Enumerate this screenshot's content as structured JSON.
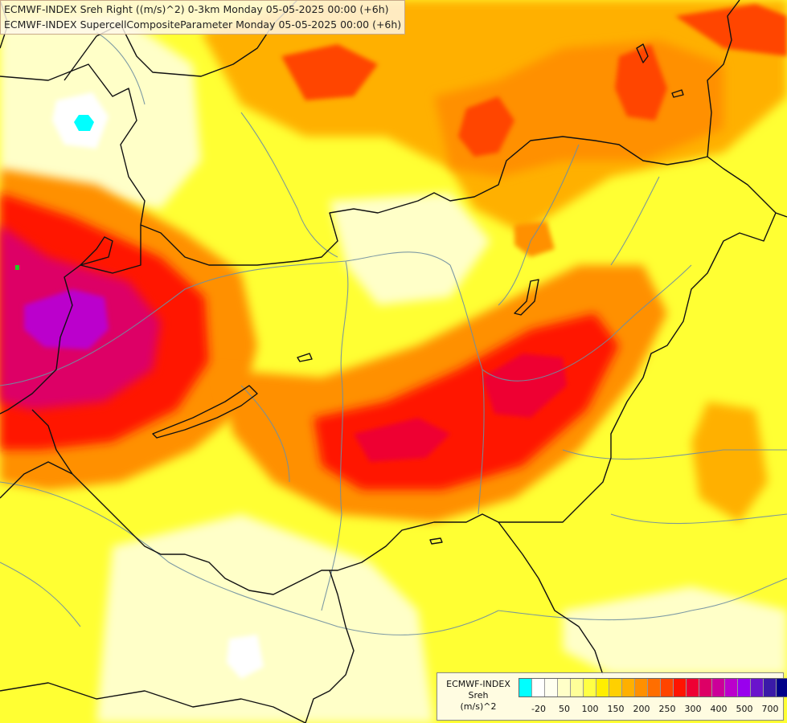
{
  "titles": {
    "line1": "ECMWF-INDEX Sreh Right ((m/s)^2) 0-3km Monday 05-05-2025 00:00 (+6h)",
    "line2": "ECMWF-INDEX SupercellCompositeParameter Monday 05-05-2025 00:00 (+6h)"
  },
  "legend": {
    "line1": "ECMWF-INDEX",
    "line2": "Sreh",
    "line3": "(m/s)^2",
    "colors": [
      "#00ffff",
      "#ffffff",
      "#fffff0",
      "#ffffc8",
      "#ffff99",
      "#ffff44",
      "#ffee00",
      "#ffd000",
      "#ffb000",
      "#ff9000",
      "#ff6e00",
      "#ff4400",
      "#ff1400",
      "#ee0033",
      "#dd0066",
      "#cc0099",
      "#bb00cc",
      "#9900ee",
      "#6a14cc",
      "#3a1aa8",
      "#000088"
    ],
    "ticks": [
      {
        "label": "-20",
        "pos": 1
      },
      {
        "label": "50",
        "pos": 3
      },
      {
        "label": "100",
        "pos": 5
      },
      {
        "label": "150",
        "pos": 7
      },
      {
        "label": "200",
        "pos": 9
      },
      {
        "label": "250",
        "pos": 11
      },
      {
        "label": "300",
        "pos": 13
      },
      {
        "label": "400",
        "pos": 15
      },
      {
        "label": "500",
        "pos": 17
      },
      {
        "label": "700",
        "pos": 19
      }
    ]
  },
  "regions": [
    {
      "name": "pale-west",
      "color": "#ffffc8"
    },
    {
      "name": "white-patch",
      "color": "#ffffff"
    },
    {
      "name": "cyan-spot",
      "color": "#00ffff"
    },
    {
      "name": "orange-north",
      "color": "#ffb000"
    },
    {
      "name": "red-north",
      "color": "#ff4400"
    },
    {
      "name": "orange-west",
      "color": "#ff9000"
    },
    {
      "name": "red-west",
      "color": "#ff1400"
    },
    {
      "name": "magenta-west",
      "color": "#dd0066"
    },
    {
      "name": "purple-west",
      "color": "#bb00cc"
    },
    {
      "name": "orange-band",
      "color": "#ff9000"
    },
    {
      "name": "red-band",
      "color": "#ff1400"
    },
    {
      "name": "crimson-band",
      "color": "#ee0033"
    },
    {
      "name": "pale-south",
      "color": "#ffffc8"
    },
    {
      "name": "pale-southeast",
      "color": "#ffffc8"
    },
    {
      "name": "green-dot",
      "color": "#22cc22"
    }
  ]
}
